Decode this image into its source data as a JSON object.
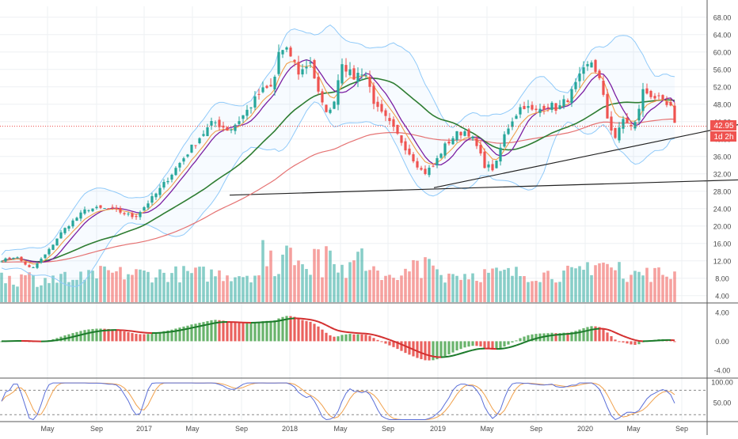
{
  "chart_data": [
    {
      "type": "candlestick",
      "panel": "price",
      "x": [
        "May",
        "Sep",
        "2017",
        "May",
        "Sep",
        "2018",
        "May",
        "Sep",
        "2019",
        "May",
        "Sep",
        "2020",
        "May",
        "Sep"
      ],
      "y_ticks": [
        "68.00",
        "64.00",
        "60.00",
        "56.00",
        "52.00",
        "48.00",
        "44.00",
        "40.00",
        "36.00",
        "32.00",
        "28.00",
        "24.00",
        "20.00",
        "16.00",
        "12.00",
        "8.00",
        "4.00"
      ],
      "ylim": [
        2.5,
        70.5
      ],
      "series": [
        {
          "role": "price",
          "close_anchors": [
            [
              0,
              12
            ],
            [
              20,
              13
            ],
            [
              40,
              10
            ],
            [
              60,
              14
            ],
            [
              75,
              18
            ],
            [
              85,
              20
            ],
            [
              110,
              24
            ],
            [
              140,
              24
            ],
            [
              170,
              22
            ],
            [
              200,
              28
            ],
            [
              225,
              34
            ],
            [
              250,
              40
            ],
            [
              270,
              44
            ],
            [
              290,
              42
            ],
            [
              310,
              46
            ],
            [
              330,
              51
            ],
            [
              345,
              52
            ],
            [
              352,
              60
            ],
            [
              365,
              60
            ],
            [
              378,
              55
            ],
            [
              392,
              58
            ],
            [
              405,
              48
            ],
            [
              418,
              46
            ],
            [
              432,
              58
            ],
            [
              445,
              54
            ],
            [
              460,
              56
            ],
            [
              475,
              47
            ],
            [
              490,
              44
            ],
            [
              505,
              40
            ],
            [
              520,
              36
            ],
            [
              535,
              32
            ],
            [
              548,
              34
            ],
            [
              560,
              38
            ],
            [
              575,
              41
            ],
            [
              590,
              42
            ],
            [
              600,
              39
            ],
            [
              612,
              34
            ],
            [
              625,
              33
            ],
            [
              635,
              40
            ],
            [
              645,
              44
            ],
            [
              660,
              48
            ],
            [
              675,
              46
            ],
            [
              690,
              48
            ],
            [
              705,
              47
            ],
            [
              720,
              50
            ],
            [
              735,
              55
            ],
            [
              748,
              58
            ],
            [
              758,
              53
            ],
            [
              768,
              44
            ],
            [
              778,
              40
            ],
            [
              788,
              45
            ],
            [
              800,
              42
            ],
            [
              812,
              51
            ],
            [
              825,
              50
            ],
            [
              838,
              48
            ],
            [
              847,
              47
            ],
            [
              852,
              43
            ]
          ]
        },
        {
          "role": "ema-orange"
        },
        {
          "role": "sma-purple"
        },
        {
          "role": "sma-green"
        },
        {
          "role": "sma-red"
        },
        {
          "role": "bollinger-bands"
        }
      ],
      "last_price": {
        "label": "42.95",
        "countdown": "1d 2h",
        "value": 42.95
      },
      "trendlines": [
        {
          "from": [
            290,
            27.1
          ],
          "to": [
            932,
            30.6
          ]
        },
        {
          "from": [
            548,
            28.8
          ],
          "to": [
            932,
            43.3
          ]
        }
      ],
      "volume": {
        "axis_min": 4.0,
        "values_approx": "8-20 range, peak ~20 near 2018 May"
      }
    },
    {
      "type": "histogram+line",
      "panel": "macd",
      "y_ticks": [
        "4.00",
        "0.00",
        "-4.00"
      ],
      "ylim": [
        -5.0,
        5.2
      ]
    },
    {
      "type": "line",
      "panel": "stochastic",
      "y_ticks": [
        "100.00",
        "50.00"
      ],
      "ylim": [
        5,
        108
      ],
      "levels": [
        80,
        20
      ]
    }
  ],
  "colors": {
    "up": "#26a69a",
    "down": "#ef5350",
    "ema_orange": "#f0a04b",
    "sma_purple": "#7b1fa2",
    "sma_green": "#2e7d32",
    "sma_red": "#e57373",
    "bands": "#90caf9",
    "grid": "#eef0f3",
    "axis_text": "#4a4a4a",
    "stoch_blue": "#5b6fd8",
    "stoch_orange": "#f0a04b"
  }
}
